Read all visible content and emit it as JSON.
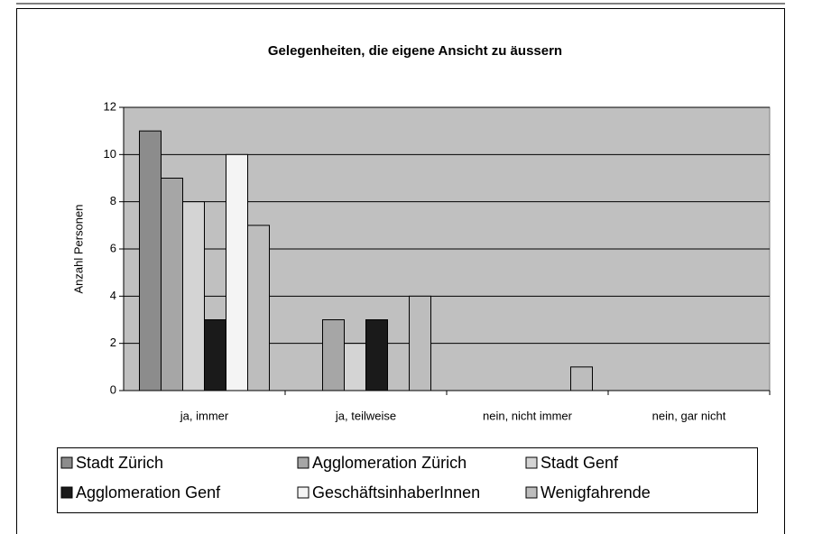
{
  "chart_data": {
    "type": "bar",
    "title": "Gelegenheiten, die eigene Ansicht zu äussern",
    "ylabel": "Anzahl Personen",
    "categories": [
      "ja, immer",
      "ja, teilweise",
      "nein, nicht immer",
      "nein, gar nicht"
    ],
    "series": [
      {
        "name": "Stadt Zürich",
        "color": "#8c8c8c",
        "values": [
          11,
          0,
          0,
          0
        ]
      },
      {
        "name": "Agglomeration Zürich",
        "color": "#a6a6a6",
        "values": [
          9,
          3,
          0,
          0
        ]
      },
      {
        "name": "Stadt Genf",
        "color": "#d4d4d4",
        "values": [
          8,
          2,
          0,
          0
        ]
      },
      {
        "name": "Agglomeration Genf",
        "color": "#1a1a1a",
        "values": [
          3,
          3,
          0,
          0
        ]
      },
      {
        "name": "GeschäftsinhaberInnen",
        "color": "#f4f4f4",
        "values": [
          10,
          0,
          0,
          0
        ]
      },
      {
        "name": "Wenigfahrende",
        "color": "#bdbdbd",
        "values": [
          7,
          4,
          1,
          0
        ]
      }
    ],
    "ylim": [
      0,
      12
    ],
    "yticks": [
      0,
      2,
      4,
      6,
      8,
      10,
      12
    ],
    "grid": true,
    "legend": "bottom"
  }
}
